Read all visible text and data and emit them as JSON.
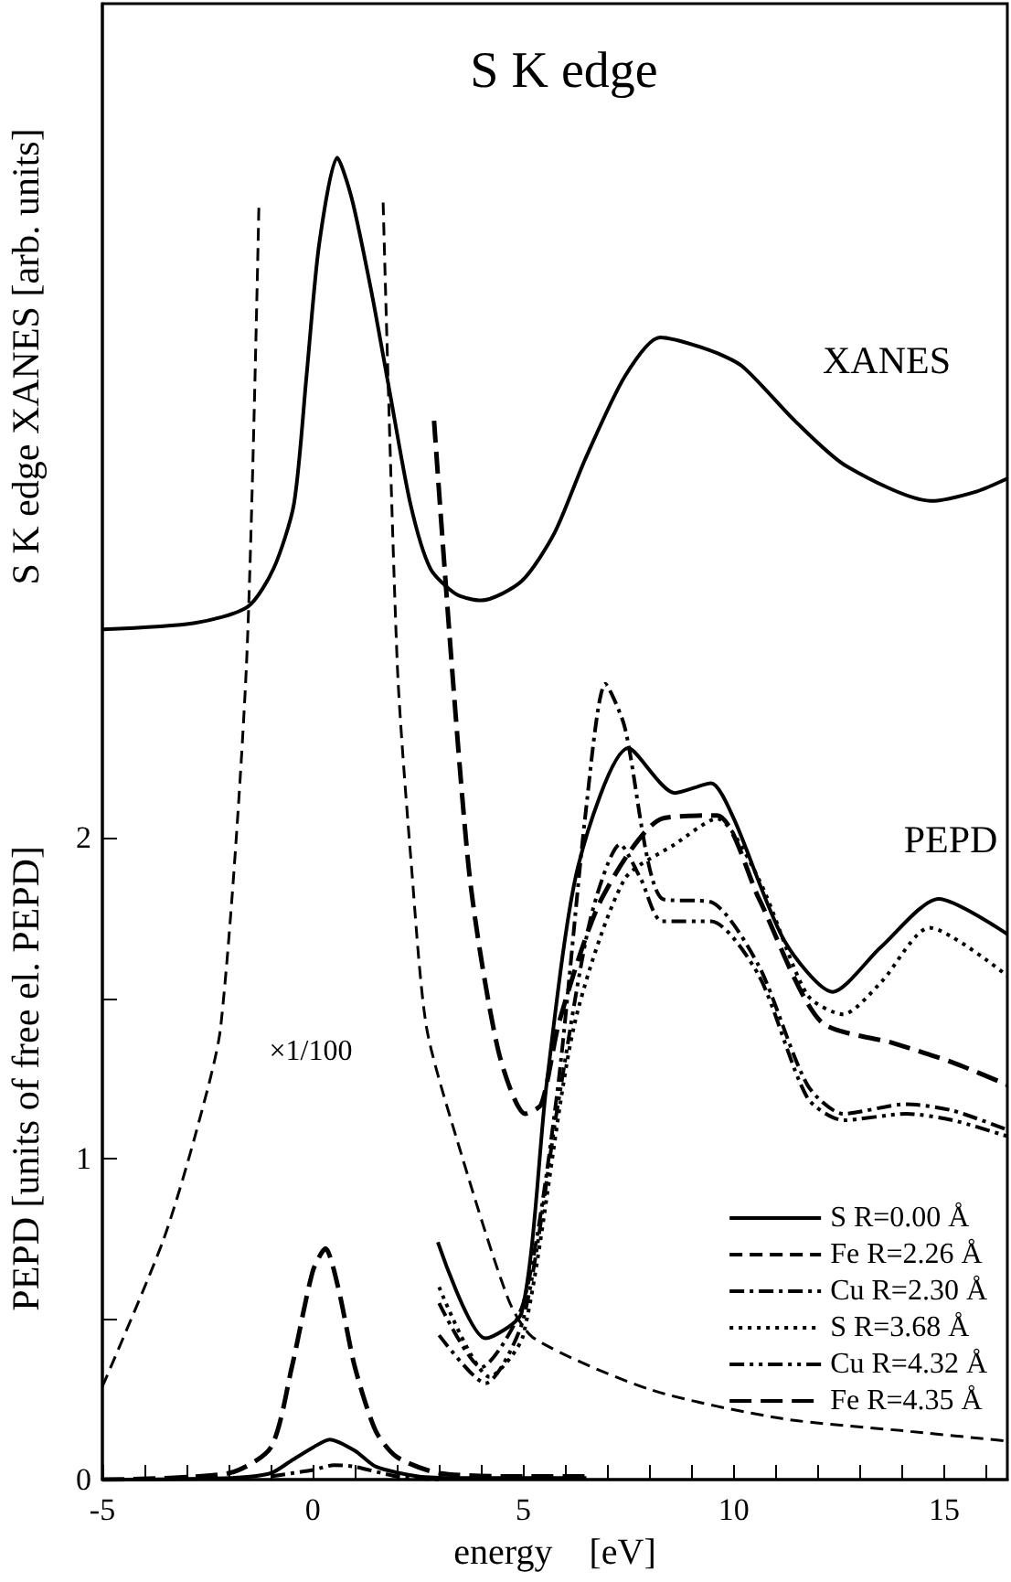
{
  "chart_data": {
    "type": "line",
    "title": "S K edge",
    "xlabel": "energy    [eV]",
    "ylabel": "PEPD [units of free el. PEPD]",
    "xlim": [
      -5,
      16.5
    ],
    "ylim": [
      0,
      4.6
    ],
    "xticks": [
      -5,
      {
        "value": -4,
        "label": null
      },
      {
        "value": -3,
        "label": null
      },
      {
        "value": -2,
        "label": null
      },
      {
        "value": -1,
        "label": null
      },
      0,
      {
        "value": 1,
        "label": null
      },
      {
        "value": 2,
        "label": null
      },
      {
        "value": 3,
        "label": null
      },
      {
        "value": 4,
        "label": null
      },
      5,
      {
        "value": 6,
        "label": null
      },
      {
        "value": 7,
        "label": null
      },
      {
        "value": 8,
        "label": null
      },
      {
        "value": 9,
        "label": null
      },
      10,
      {
        "value": 11,
        "label": null
      },
      {
        "value": 12,
        "label": null
      },
      {
        "value": 13,
        "label": null
      },
      {
        "value": 14,
        "label": null
      },
      15,
      {
        "value": 16,
        "label": null
      }
    ],
    "yticks": [
      0,
      {
        "value": 0.5,
        "label": null
      },
      1,
      {
        "value": 1.5,
        "label": null
      },
      2
    ],
    "grid": false,
    "legend": "bottom right",
    "marker": "none",
    "annotations": [
      "S K edge XANES [arb. units]",
      "XANES",
      "PEPD",
      "×1/100"
    ],
    "series": [
      {
        "color": "#000000",
        "line_style": "solid",
        "x": [
          -5,
          -2.8,
          -1.55,
          -0.93,
          -0.45,
          -0.15,
          0.15,
          0.58,
          0.93,
          1.41,
          1.84,
          2.32,
          2.79,
          3.4,
          4.0,
          4.96,
          5.74,
          6.47,
          7.42,
          8.25,
          9.42,
          10.2,
          11.45,
          12.66,
          14.7,
          15.78,
          16.5
        ],
        "values": [
          2.65,
          2.67,
          2.72,
          2.84,
          3.04,
          3.44,
          3.85,
          4.12,
          3.99,
          3.69,
          3.38,
          3.04,
          2.84,
          2.76,
          2.74,
          2.8,
          2.95,
          3.18,
          3.44,
          3.56,
          3.52,
          3.47,
          3.3,
          3.16,
          3.05,
          3.08,
          3.12
        ]
      },
      {
        "color": "#000000",
        "line_style": "solid",
        "x": [
          -5,
          -2,
          -1,
          -0.5,
          0,
          0.4,
          1,
          1.5,
          2.5,
          3.5,
          6.5
        ],
        "values": [
          0,
          0.005,
          0.02,
          0.06,
          0.1,
          0.125,
          0.09,
          0.04,
          0.01,
          0.005,
          0.005
        ]
      },
      {
        "name": "S R=0.00 Å",
        "color": "#000000",
        "line_style": "solid",
        "x": [
          2.97,
          4.1,
          4.96,
          5.56,
          6.3,
          7.5,
          8.6,
          9.46,
          10.0,
          11.2,
          12.35,
          13.5,
          14.87,
          16.5
        ],
        "values": [
          0.74,
          0.44,
          0.52,
          1.24,
          1.91,
          2.28,
          2.14,
          2.17,
          2.06,
          1.68,
          1.52,
          1.66,
          1.81,
          1.7
        ]
      },
      {
        "color": "#000000",
        "line_style": "dashed",
        "x": [
          -5,
          -3.57,
          -2.8,
          -2.19,
          -1.58,
          -1.28
        ],
        "values": [
          0.29,
          0.74,
          1.07,
          1.41,
          2.53,
          3.98
        ]
      },
      {
        "name": "Fe R=2.26 Å",
        "color": "#000000",
        "line_style": "dashed",
        "x": [
          1.67,
          2.01,
          2.35,
          2.7,
          3.4,
          4.65,
          5.26,
          8.03,
          11.15,
          14.2,
          16.5
        ],
        "values": [
          3.98,
          2.53,
          1.9,
          1.41,
          1.07,
          0.56,
          0.44,
          0.28,
          0.19,
          0.15,
          0.12
        ]
      },
      {
        "color": "#000000",
        "line_style": "dashdot",
        "x": [
          -1,
          0,
          0.5,
          1,
          2,
          3
        ],
        "values": [
          0.01,
          0.03,
          0.045,
          0.04,
          0.01,
          0
        ]
      },
      {
        "name": "Cu R=2.30 Å",
        "color": "#000000",
        "line_style": "dashdot",
        "x": [
          3.0,
          4.0,
          5.0,
          5.8,
          6.5,
          6.95,
          7.4,
          8.3,
          9.46,
          10.6,
          11.75,
          12.6,
          14.1,
          15.2,
          16.5
        ],
        "values": [
          0.55,
          0.35,
          0.55,
          1.2,
          2.1,
          2.48,
          2.35,
          1.81,
          1.8,
          1.6,
          1.23,
          1.14,
          1.17,
          1.15,
          1.09
        ]
      },
      {
        "name": "S R=3.68 Å",
        "color": "#000000",
        "line_style": "dotted",
        "x": [
          3.0,
          4.2,
          5.0,
          6.2,
          7.4,
          8.6,
          9.6,
          10.6,
          11.75,
          12.6,
          13.5,
          14.65,
          16.5
        ],
        "values": [
          0.6,
          0.32,
          0.45,
          1.41,
          1.87,
          1.98,
          2.06,
          1.87,
          1.51,
          1.45,
          1.55,
          1.72,
          1.57
        ]
      },
      {
        "name": "Cu R=4.32 Å",
        "color": "#000000",
        "line_style": "dashdotdot",
        "x": [
          3.0,
          4.1,
          5.0,
          5.8,
          6.6,
          7.3,
          7.8,
          8.3,
          9.46,
          10.6,
          11.75,
          12.6,
          14.1,
          15.2,
          16.5
        ],
        "values": [
          0.45,
          0.3,
          0.5,
          1.15,
          1.75,
          1.98,
          1.87,
          1.74,
          1.74,
          1.57,
          1.19,
          1.12,
          1.14,
          1.12,
          1.07
        ]
      },
      {
        "color": "#000000",
        "line_style": "longdash",
        "x": [
          -5,
          -2,
          -1,
          -0.5,
          0,
          0.3,
          0.6,
          1,
          1.5,
          2,
          3,
          5,
          6.5
        ],
        "values": [
          0,
          0.02,
          0.1,
          0.35,
          0.65,
          0.72,
          0.6,
          0.35,
          0.15,
          0.07,
          0.02,
          0.01,
          0.01
        ]
      },
      {
        "name": "Fe R=4.35 Å",
        "color": "#000000",
        "line_style": "longdash",
        "x": [
          2.88,
          3.7,
          4.4,
          5.05,
          5.43,
          5.86,
          6.86,
          8.3,
          9.6,
          10.6,
          12.05,
          13.8,
          15.2,
          16.5
        ],
        "values": [
          3.3,
          1.91,
          1.34,
          1.14,
          1.17,
          1.43,
          1.81,
          2.06,
          2.07,
          1.81,
          1.43,
          1.36,
          1.3,
          1.23
        ]
      }
    ]
  }
}
